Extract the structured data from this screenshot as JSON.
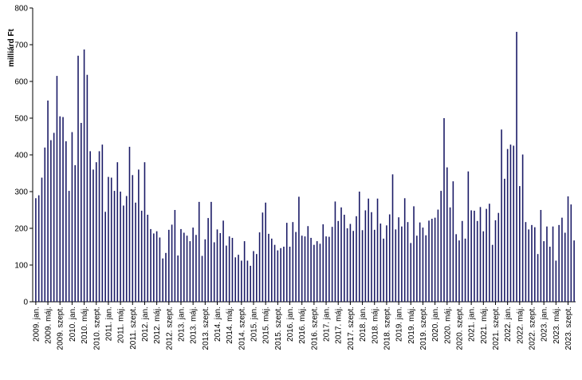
{
  "chart_data": {
    "type": "bar",
    "ylabel": "milliárd Ft",
    "ylim": [
      0,
      800
    ],
    "yticks": [
      0,
      100,
      200,
      300,
      400,
      500,
      600,
      700,
      800
    ],
    "grid": false,
    "bar_color": "#1a1a66",
    "x_tick_labels": [
      {
        "index": 0,
        "label": "2009. jan."
      },
      {
        "index": 4,
        "label": "2009. máj."
      },
      {
        "index": 8,
        "label": "2009. szept."
      },
      {
        "index": 12,
        "label": "2010. jan."
      },
      {
        "index": 16,
        "label": "2010. máj."
      },
      {
        "index": 20,
        "label": "2010. szept."
      },
      {
        "index": 24,
        "label": "2011. jan."
      },
      {
        "index": 28,
        "label": "2011. máj."
      },
      {
        "index": 32,
        "label": "2011. szept."
      },
      {
        "index": 36,
        "label": "2012. jan."
      },
      {
        "index": 40,
        "label": "2012. máj."
      },
      {
        "index": 44,
        "label": "2012. szept."
      },
      {
        "index": 48,
        "label": "2013. jan."
      },
      {
        "index": 52,
        "label": "2013. máj."
      },
      {
        "index": 56,
        "label": "2013. szept."
      },
      {
        "index": 60,
        "label": "2014. jan."
      },
      {
        "index": 64,
        "label": "2014. máj."
      },
      {
        "index": 68,
        "label": "2014. szept."
      },
      {
        "index": 72,
        "label": "2015. jan."
      },
      {
        "index": 76,
        "label": "2015. máj."
      },
      {
        "index": 80,
        "label": "2015. szept."
      },
      {
        "index": 84,
        "label": "2016. jan."
      },
      {
        "index": 88,
        "label": "2016. máj."
      },
      {
        "index": 92,
        "label": "2016. szept."
      },
      {
        "index": 96,
        "label": "2017. jan."
      },
      {
        "index": 100,
        "label": "2017. máj."
      },
      {
        "index": 104,
        "label": "2017. szept."
      },
      {
        "index": 108,
        "label": "2018. jan."
      },
      {
        "index": 112,
        "label": "2018. máj."
      },
      {
        "index": 116,
        "label": "2018. szept."
      },
      {
        "index": 120,
        "label": "2019. jan."
      },
      {
        "index": 124,
        "label": "2019. máj."
      },
      {
        "index": 128,
        "label": "2019. szept."
      },
      {
        "index": 132,
        "label": "2020. jan."
      },
      {
        "index": 136,
        "label": "2020. máj."
      },
      {
        "index": 140,
        "label": "2020. szept."
      },
      {
        "index": 144,
        "label": "2021. jan."
      },
      {
        "index": 148,
        "label": "2021. máj."
      },
      {
        "index": 152,
        "label": "2021. szept."
      },
      {
        "index": 156,
        "label": "2022. jan."
      },
      {
        "index": 160,
        "label": "2022. máj."
      },
      {
        "index": 164,
        "label": "2022. szept."
      },
      {
        "index": 168,
        "label": "2023. jan."
      },
      {
        "index": 172,
        "label": "2023. máj."
      },
      {
        "index": 176,
        "label": "2023. szept."
      }
    ],
    "values": [
      282,
      290,
      338,
      420,
      548,
      440,
      460,
      615,
      505,
      503,
      437,
      302,
      462,
      372,
      670,
      487,
      687,
      618,
      410,
      360,
      380,
      410,
      428,
      245,
      340,
      338,
      302,
      380,
      300,
      262,
      288,
      422,
      345,
      270,
      360,
      248,
      380,
      237,
      198,
      186,
      192,
      175,
      118,
      133,
      196,
      210,
      250,
      126,
      198,
      188,
      180,
      165,
      202,
      182,
      272,
      125,
      170,
      228,
      272,
      162,
      197,
      187,
      221,
      153,
      178,
      174,
      121,
      128,
      112,
      165,
      112,
      98,
      138,
      130,
      189,
      243,
      270,
      185,
      172,
      155,
      140,
      146,
      150,
      215,
      150,
      217,
      190,
      286,
      180,
      178,
      206,
      174,
      155,
      165,
      158,
      211,
      178,
      177,
      204,
      273,
      220,
      257,
      237,
      200,
      212,
      193,
      233,
      300,
      195,
      249,
      281,
      244,
      196,
      281,
      213,
      172,
      208,
      238,
      347,
      197,
      230,
      205,
      282,
      217,
      160,
      260,
      180,
      216,
      202,
      181,
      221,
      226,
      229,
      251,
      302,
      500,
      366,
      257,
      328,
      184,
      167,
      220,
      172,
      355,
      249,
      248,
      220,
      258,
      192,
      253,
      267,
      155,
      222,
      242,
      469,
      335,
      416,
      428,
      425,
      735,
      315,
      401,
      217,
      197,
      209,
      203,
      130,
      250,
      165,
      205,
      150,
      205,
      112,
      209,
      229,
      188,
      287,
      265,
      167
    ]
  }
}
